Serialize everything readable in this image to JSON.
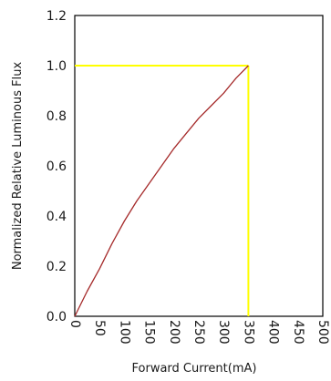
{
  "chart_data": {
    "type": "line",
    "title": "",
    "xlabel": "Forward Current(mA)",
    "ylabel": "Normalized Relative Luminous Flux",
    "xlim": [
      0,
      500
    ],
    "ylim": [
      0.0,
      1.2
    ],
    "x_ticks": [
      0,
      50,
      100,
      150,
      200,
      250,
      300,
      350,
      400,
      450,
      500
    ],
    "x_tick_labels": [
      "0",
      "50",
      "100",
      "150",
      "200",
      "250",
      "300",
      "350",
      "400",
      "450",
      "500"
    ],
    "y_ticks": [
      0.0,
      0.2,
      0.4,
      0.6,
      0.8,
      1.0,
      1.2
    ],
    "y_tick_labels": [
      "0.0",
      "0.2",
      "0.4",
      "0.6",
      "0.8",
      "1.0",
      "1.2"
    ],
    "grid": false,
    "series": [
      {
        "color": "#a52a2a",
        "x": [
          0,
          25,
          50,
          75,
          100,
          125,
          150,
          175,
          200,
          225,
          250,
          275,
          300,
          325,
          350
        ],
        "y": [
          0.0,
          0.1,
          0.19,
          0.29,
          0.38,
          0.46,
          0.53,
          0.6,
          0.67,
          0.73,
          0.79,
          0.84,
          0.89,
          0.95,
          1.0
        ]
      }
    ],
    "reference_lines": {
      "color": "#ffff00",
      "x": 350,
      "y": 1.0
    }
  }
}
